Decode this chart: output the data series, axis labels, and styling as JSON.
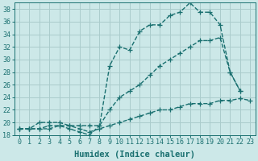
{
  "line1_x": [
    0,
    1,
    2,
    3,
    4,
    5,
    6,
    7,
    8,
    9,
    10,
    11,
    12,
    13,
    14,
    15,
    16,
    17,
    18,
    19,
    20,
    21,
    22
  ],
  "line1_y": [
    19,
    19,
    19,
    19.5,
    19.5,
    19,
    18.5,
    18,
    19.5,
    29,
    32,
    31.5,
    34.5,
    35.5,
    35.5,
    37,
    37.5,
    39,
    37.5,
    37.5,
    35.5,
    28,
    25
  ],
  "line2_x": [
    0,
    1,
    2,
    3,
    4,
    5,
    6,
    7,
    8,
    9,
    10,
    11,
    12,
    13,
    14,
    15,
    16,
    17,
    18,
    19,
    20,
    21,
    22
  ],
  "line2_y": [
    19,
    19,
    20,
    20,
    20,
    19.5,
    19.5,
    19.5,
    19.5,
    22,
    24,
    25,
    26,
    27.5,
    29,
    30,
    31,
    32,
    33,
    33,
    33.5,
    28,
    25
  ],
  "line3_x": [
    0,
    1,
    2,
    3,
    4,
    5,
    6,
    7,
    8,
    9,
    10,
    11,
    12,
    13,
    14,
    15,
    16,
    17,
    18,
    19,
    20,
    21,
    22,
    23
  ],
  "line3_y": [
    19,
    19,
    19,
    19,
    19.5,
    19.5,
    19,
    18.5,
    19,
    19.5,
    20,
    20.5,
    21,
    21.5,
    22,
    22,
    22.5,
    23,
    23,
    23,
    23.5,
    23.5,
    23.8,
    23.5
  ],
  "color": "#1a7070",
  "bg_color": "#cce8e8",
  "grid_color": "#aacccc",
  "xlabel": "Humidex (Indice chaleur)",
  "ylim": [
    18,
    39
  ],
  "xlim": [
    -0.5,
    23.5
  ],
  "yticks": [
    18,
    20,
    22,
    24,
    26,
    28,
    30,
    32,
    34,
    36,
    38
  ],
  "xticks": [
    0,
    1,
    2,
    3,
    4,
    5,
    6,
    7,
    8,
    9,
    10,
    11,
    12,
    13,
    14,
    15,
    16,
    17,
    18,
    19,
    20,
    21,
    22,
    23
  ],
  "marker": "+",
  "markersize": 4,
  "linewidth": 1.0,
  "xlabel_fontsize": 7.5,
  "tick_fontsize": 6
}
